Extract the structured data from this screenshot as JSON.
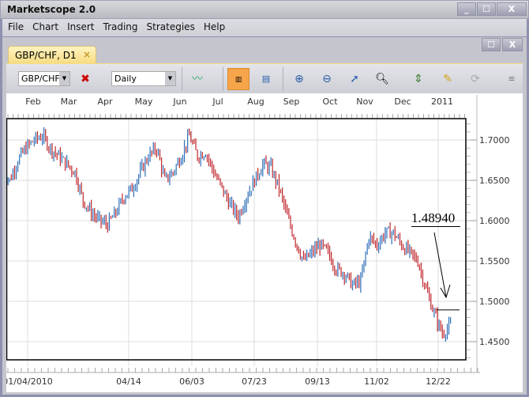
{
  "window": {
    "title": "Marketscope 2.0",
    "minimize": "_",
    "maximize": "☐",
    "close": "X"
  },
  "menu": [
    "File",
    "Chart",
    "Insert",
    "Trading",
    "Strategies",
    "Help"
  ],
  "tab": {
    "label": "GBP/CHF, D1",
    "close": "×"
  },
  "toolbar": {
    "instrument": "GBP/CHF",
    "timeframe": "Daily",
    "icons": [
      "remove-indicator-icon",
      "chart-type-icon",
      "bar-chart-icon",
      "candle-chart-icon",
      "zoom-in-icon",
      "zoom-out-icon",
      "cursor-icon",
      "zoom-range-icon",
      "vertical-scale-icon",
      "properties-icon",
      "sync-icon",
      "toolbar-options-icon"
    ]
  },
  "colors": {
    "up": "#2e6fb8",
    "down": "#c0262c"
  },
  "chart_data": {
    "type": "ohlc",
    "instrument": "GBP/CHF",
    "timeframe": "D1",
    "month_labels": [
      "Feb",
      "Mar",
      "Apr",
      "May",
      "Jun",
      "Jul",
      "Aug",
      "Sep",
      "Oct",
      "Nov",
      "Dec",
      "2011"
    ],
    "date_labels": [
      "01/04/2010",
      "04/14",
      "06/03",
      "07/23",
      "09/13",
      "11/02",
      "12/22"
    ],
    "y_ticks": [
      "1.7000",
      "1.6500",
      "1.6000",
      "1.5500",
      "1.5000",
      "1.4500"
    ],
    "ylim": [
      1.4275,
      1.7265
    ],
    "grid": true,
    "weekly_closes_from_2009_12_14": [
      1.665,
      1.65,
      1.675,
      1.69,
      1.7,
      1.705,
      1.69,
      1.68,
      1.67,
      1.66,
      1.625,
      1.61,
      1.6,
      1.595,
      1.61,
      1.63,
      1.64,
      1.66,
      1.68,
      1.69,
      1.65,
      1.66,
      1.68,
      1.705,
      1.68,
      1.685,
      1.66,
      1.64,
      1.62,
      1.605,
      1.63,
      1.65,
      1.67,
      1.665,
      1.64,
      1.605,
      1.575,
      1.55,
      1.56,
      1.57,
      1.56,
      1.54,
      1.535,
      1.52,
      1.525,
      1.58,
      1.57,
      1.585,
      1.585,
      1.57,
      1.56,
      1.55,
      1.515,
      1.485,
      1.46,
      1.47
    ],
    "annotation": {
      "label": "1.48940",
      "price": 1.4894
    }
  }
}
